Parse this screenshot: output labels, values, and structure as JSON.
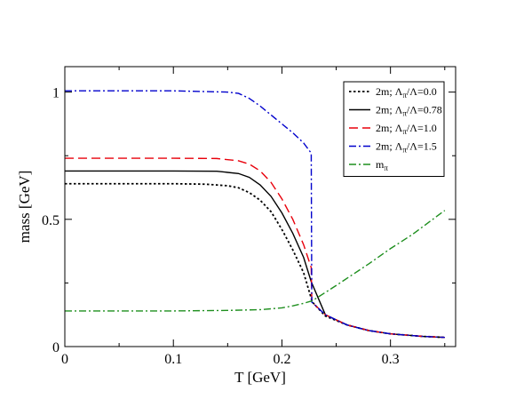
{
  "chart_data": {
    "type": "line",
    "xlabel": "T [GeV]",
    "ylabel": "mass [GeV]",
    "xlim": [
      0,
      0.36
    ],
    "ylim": [
      0,
      1.1
    ],
    "x_ticks": [
      {
        "value": 0,
        "label": "0"
      },
      {
        "value": 0.1,
        "label": "0.1"
      },
      {
        "value": 0.2,
        "label": "0.2"
      },
      {
        "value": 0.3,
        "label": "0.3"
      }
    ],
    "y_ticks": [
      {
        "value": 0,
        "label": "0"
      },
      {
        "value": 0.5,
        "label": "0.5"
      },
      {
        "value": 1,
        "label": "1"
      }
    ],
    "grid": false,
    "legend_position": "top-right",
    "series": [
      {
        "name": "2m; Λπ/Λ=0.0",
        "legend": {
          "base": "2m; Λ",
          "sub": "π",
          "rest": "/Λ=0.0"
        },
        "color": "#000000",
        "dash": "dotted",
        "x": [
          0,
          0.05,
          0.1,
          0.13,
          0.15,
          0.16,
          0.17,
          0.18,
          0.19,
          0.2,
          0.21,
          0.22,
          0.228,
          0.24,
          0.26,
          0.28,
          0.3,
          0.33,
          0.35
        ],
        "y": [
          0.64,
          0.64,
          0.64,
          0.638,
          0.632,
          0.624,
          0.605,
          0.575,
          0.53,
          0.46,
          0.38,
          0.29,
          0.175,
          0.12,
          0.085,
          0.063,
          0.05,
          0.04,
          0.036
        ]
      },
      {
        "name": "2m; Λπ/Λ=0.78",
        "legend": {
          "base": "2m; Λ",
          "sub": "π",
          "rest": "/Λ=0.78"
        },
        "color": "#000000",
        "dash": "solid",
        "x": [
          0,
          0.05,
          0.1,
          0.14,
          0.16,
          0.17,
          0.18,
          0.19,
          0.2,
          0.21,
          0.22,
          0.227,
          0.24,
          0.26,
          0.28,
          0.3,
          0.33,
          0.35
        ],
        "y": [
          0.69,
          0.69,
          0.69,
          0.689,
          0.68,
          0.665,
          0.635,
          0.59,
          0.525,
          0.445,
          0.35,
          0.255,
          0.125,
          0.085,
          0.063,
          0.05,
          0.04,
          0.036
        ]
      },
      {
        "name": "2m; Λπ/Λ=1.0",
        "legend": {
          "base": "2m; Λ",
          "sub": "π",
          "rest": "/Λ=1.0"
        },
        "color": "#e8000b",
        "dash": "dashed",
        "x": [
          0,
          0.05,
          0.1,
          0.14,
          0.16,
          0.17,
          0.18,
          0.19,
          0.2,
          0.21,
          0.22,
          0.227,
          0.2275,
          0.24,
          0.26,
          0.28,
          0.3,
          0.33,
          0.35
        ],
        "y": [
          0.74,
          0.74,
          0.74,
          0.739,
          0.73,
          0.717,
          0.69,
          0.645,
          0.58,
          0.5,
          0.4,
          0.31,
          0.175,
          0.125,
          0.085,
          0.063,
          0.05,
          0.04,
          0.036
        ]
      },
      {
        "name": "2m; Λπ/Λ=1.5",
        "legend": {
          "base": "2m; Λ",
          "sub": "π",
          "rest": "/Λ=1.5"
        },
        "color": "#0000cc",
        "dash": "dashdot",
        "x": [
          0,
          0.05,
          0.1,
          0.15,
          0.16,
          0.17,
          0.18,
          0.19,
          0.2,
          0.21,
          0.22,
          0.227,
          0.2275,
          0.24,
          0.26,
          0.28,
          0.3,
          0.33,
          0.35
        ],
        "y": [
          1.005,
          1.005,
          1.005,
          1.0,
          0.995,
          0.975,
          0.945,
          0.91,
          0.875,
          0.84,
          0.8,
          0.76,
          0.175,
          0.125,
          0.085,
          0.063,
          0.05,
          0.04,
          0.036
        ]
      },
      {
        "name": "mπ",
        "legend": {
          "base": "m",
          "sub": "π",
          "rest": ""
        },
        "color": "#1f8f1f",
        "dash": "dashdot",
        "x": [
          0,
          0.05,
          0.1,
          0.15,
          0.18,
          0.2,
          0.21,
          0.22,
          0.228,
          0.25,
          0.28,
          0.3,
          0.32,
          0.35
        ],
        "y": [
          0.14,
          0.14,
          0.14,
          0.142,
          0.145,
          0.152,
          0.16,
          0.17,
          0.18,
          0.24,
          0.325,
          0.385,
          0.44,
          0.535
        ]
      }
    ]
  }
}
